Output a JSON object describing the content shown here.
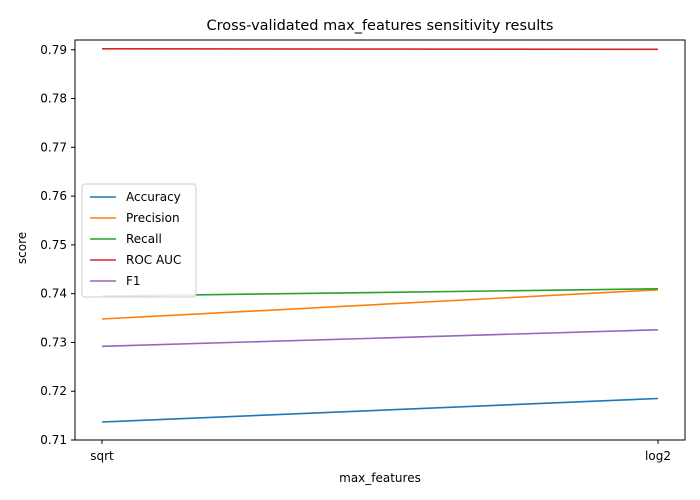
{
  "chart_data": {
    "type": "line",
    "title": "Cross-validated max_features sensitivity results",
    "xlabel": "max_features",
    "ylabel": "score",
    "categories": [
      "sqrt",
      "log2"
    ],
    "ylim": [
      0.71,
      0.792
    ],
    "yticks": [
      "0.71",
      "0.72",
      "0.73",
      "0.74",
      "0.75",
      "0.76",
      "0.77",
      "0.78",
      "0.79"
    ],
    "grid": false,
    "legend_position": "center-left",
    "series": [
      {
        "name": "Accuracy",
        "color": "#1f77b4",
        "values": [
          0.7137,
          0.7185
        ]
      },
      {
        "name": "Precision",
        "color": "#ff7f0e",
        "values": [
          0.7348,
          0.7408
        ]
      },
      {
        "name": "Recall",
        "color": "#2ca02c",
        "values": [
          0.7395,
          0.741
        ]
      },
      {
        "name": "ROC AUC",
        "color": "#d62728",
        "values": [
          0.7902,
          0.7901
        ]
      },
      {
        "name": "F1",
        "color": "#9467bd",
        "values": [
          0.7292,
          0.7326
        ]
      }
    ]
  }
}
